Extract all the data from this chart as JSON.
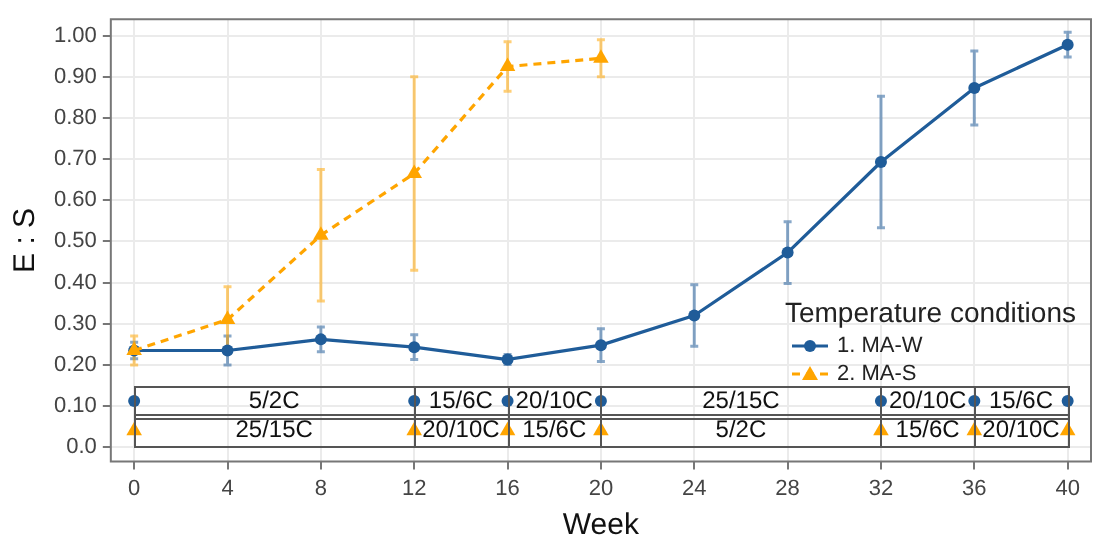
{
  "chart_data": {
    "type": "line",
    "xlabel": "Week",
    "ylabel": "E : S",
    "legend_title": "Temperature conditions",
    "legend": "right",
    "grid": true,
    "xlim": [
      -1,
      41
    ],
    "xticks": [
      0,
      4,
      8,
      12,
      16,
      20,
      24,
      28,
      32,
      36,
      40
    ],
    "ylim": [
      -0.035,
      1.04
    ],
    "yticks": [
      {
        "value": 0,
        "label": "0.0"
      },
      {
        "value": 0.1,
        "label": "0.10"
      },
      {
        "value": 0.2,
        "label": "0.20"
      },
      {
        "value": 0.3,
        "label": "0.30"
      },
      {
        "value": 0.4,
        "label": "0.40"
      },
      {
        "value": 0.5,
        "label": "0.50"
      },
      {
        "value": 0.6,
        "label": "0.60"
      },
      {
        "value": 0.7,
        "label": "0.70"
      },
      {
        "value": 0.8,
        "label": "0.80"
      },
      {
        "value": 0.9,
        "label": "0.90"
      },
      {
        "value": 1,
        "label": "1.00"
      }
    ],
    "series": [
      {
        "name": "1. MA-W",
        "color": "#1f5c99",
        "marker": "circle",
        "line_style": "solid",
        "x": [
          0,
          4,
          8,
          12,
          16,
          20,
          24,
          28,
          32,
          36,
          40
        ],
        "values": [
          0.235,
          0.235,
          0.262,
          0.243,
          0.213,
          0.248,
          0.32,
          0.473,
          0.693,
          0.873,
          0.978
        ],
        "errors": [
          0.02,
          0.035,
          0.03,
          0.03,
          0.012,
          0.04,
          0.075,
          0.075,
          0.16,
          0.09,
          0.03
        ]
      },
      {
        "name": "2. MA-S",
        "color": "#ffa500",
        "marker": "triangle",
        "line_style": "dashed",
        "x": [
          0,
          4,
          8,
          12,
          16,
          20
        ],
        "values": [
          0.235,
          0.31,
          0.515,
          0.665,
          0.925,
          0.945
        ],
        "errors": [
          0.035,
          0.08,
          0.16,
          0.235,
          0.06,
          0.045
        ]
      },
      {
        "type": "scatter",
        "color": "#1f5c99",
        "marker": "circle",
        "x": [
          0,
          12,
          16,
          20,
          32,
          36,
          40
        ],
        "values": [
          0.112,
          0.112,
          0.112,
          0.112,
          0.112,
          0.112,
          0.112
        ]
      },
      {
        "type": "scatter",
        "color": "#ffa500",
        "marker": "triangle",
        "x": [
          0,
          12,
          16,
          20,
          32,
          36,
          40
        ],
        "values": [
          0.04,
          0.04,
          0.04,
          0.04,
          0.04,
          0.04,
          0.04
        ]
      }
    ],
    "annotations": [
      "5/2C",
      "15/6C",
      "20/10C",
      "25/15C",
      "20/10C",
      "15/6C",
      "25/15C",
      "20/10C",
      "15/6C",
      "5/2C",
      "15/6C",
      "20/10C"
    ]
  }
}
